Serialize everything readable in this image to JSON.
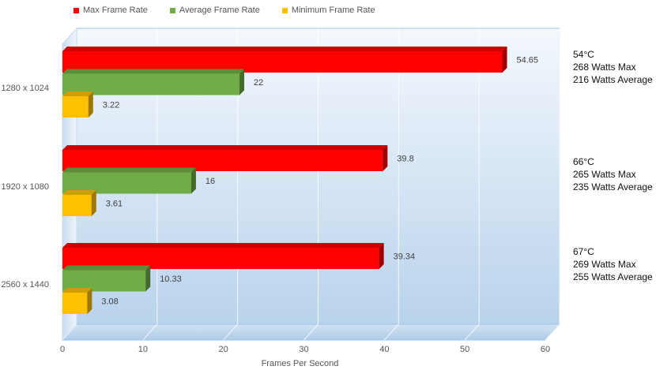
{
  "chart_data": {
    "type": "bar",
    "orientation": "horizontal",
    "style": "3d",
    "categories": [
      "1280 x 1024",
      "1920 x 1080",
      "2560 x 1440"
    ],
    "series": [
      {
        "name": "Max Frame Rate",
        "color": "#ff0000",
        "values": [
          54.65,
          39.8,
          39.34
        ]
      },
      {
        "name": "Average Frame Rate",
        "color": "#70ad47",
        "values": [
          22,
          16,
          10.33
        ]
      },
      {
        "name": "Minimum Frame Rate",
        "color": "#ffc000",
        "values": [
          3.22,
          3.61,
          3.08
        ]
      }
    ],
    "data_labels": [
      [
        "54.65",
        "22",
        "3.22"
      ],
      [
        "39.8",
        "16",
        "3.61"
      ],
      [
        "39.34",
        "10.33",
        "3.08"
      ]
    ],
    "xlabel": "Frames Per Second",
    "ylabel": "",
    "xlim": [
      0,
      60
    ],
    "xticks": [
      "0",
      "10",
      "20",
      "30",
      "40",
      "50",
      "60"
    ],
    "grid": true,
    "legend_position": "top",
    "annotations": [
      {
        "temp": "54°C",
        "max": "268 Watts Max",
        "avg": "216 Watts Average"
      },
      {
        "temp": "66°C",
        "max": "265 Watts Max",
        "avg": "235 Watts Average"
      },
      {
        "temp": "67°C",
        "max": "269 Watts Max",
        "avg": "255 Watts Average"
      }
    ]
  }
}
